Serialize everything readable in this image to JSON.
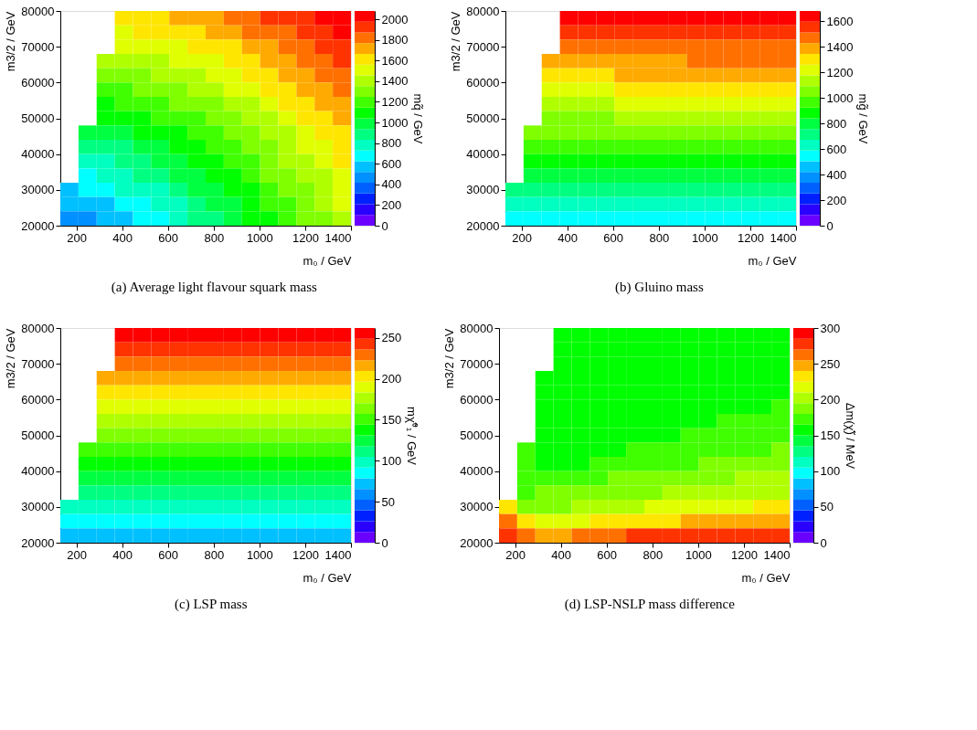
{
  "chart_data": [
    {
      "type": "heatmap",
      "title": "(a) Average light flavour squark mass",
      "xlabel": "m₀ / GeV",
      "ylabel": "m3/2 / GeV",
      "clabel": "mq̃ / GeV",
      "xlim": [
        130,
        1400
      ],
      "ylim": [
        20000,
        80000
      ],
      "xticks": [
        200,
        400,
        600,
        800,
        1000,
        1200,
        1400
      ],
      "yticks": [
        20000,
        30000,
        40000,
        50000,
        60000,
        70000,
        80000
      ],
      "clim": [
        0,
        2080
      ],
      "cticks": [
        0,
        200,
        400,
        600,
        800,
        1000,
        1200,
        1400,
        1600,
        1800,
        2000
      ],
      "colors": [
        "#6a00ff",
        "#2a00ff",
        "#0020ff",
        "#0060ff",
        "#0090ff",
        "#00c0ff",
        "#00ffff",
        "#00ffc0",
        "#00ff80",
        "#00ff40",
        "#00ff00",
        "#40ff00",
        "#80ff00",
        "#b0ff00",
        "#e0ff00",
        "#ffe600",
        "#ffaa00",
        "#ff7000",
        "#ff3300",
        "#ff0000"
      ],
      "cells": [
        [
          null,
          null,
          null,
          1610,
          1630,
          1660,
          1690,
          1720,
          1760,
          1790,
          1830,
          1880,
          1920,
          1970,
          2020,
          2070
        ],
        [
          null,
          null,
          null,
          1540,
          1560,
          1590,
          1620,
          1650,
          1690,
          1720,
          1770,
          1810,
          1860,
          1910,
          1960,
          2010
        ],
        [
          null,
          null,
          null,
          1460,
          1480,
          1510,
          1540,
          1580,
          1620,
          1660,
          1700,
          1750,
          1790,
          1850,
          1900,
          1950
        ],
        [
          null,
          null,
          1360,
          1380,
          1410,
          1440,
          1470,
          1510,
          1550,
          1590,
          1630,
          1680,
          1730,
          1790,
          1840,
          1900
        ],
        [
          null,
          null,
          1280,
          1310,
          1330,
          1360,
          1400,
          1440,
          1480,
          1520,
          1570,
          1620,
          1670,
          1730,
          1780,
          1840
        ],
        [
          null,
          null,
          1210,
          1230,
          1260,
          1290,
          1330,
          1370,
          1410,
          1460,
          1510,
          1560,
          1610,
          1670,
          1730,
          1790
        ],
        [
          null,
          null,
          1130,
          1160,
          1190,
          1220,
          1260,
          1300,
          1350,
          1400,
          1450,
          1500,
          1560,
          1620,
          1680,
          1740
        ],
        [
          null,
          null,
          1050,
          1080,
          1110,
          1150,
          1190,
          1240,
          1280,
          1340,
          1390,
          1450,
          1500,
          1560,
          1630,
          1690
        ],
        [
          null,
          950,
          980,
          1010,
          1040,
          1080,
          1120,
          1170,
          1220,
          1280,
          1330,
          1390,
          1450,
          1510,
          1580,
          1640
        ],
        [
          null,
          880,
          900,
          930,
          970,
          1010,
          1060,
          1110,
          1160,
          1220,
          1280,
          1340,
          1400,
          1470,
          1530,
          1600
        ],
        [
          null,
          800,
          830,
          860,
          900,
          950,
          1000,
          1050,
          1110,
          1170,
          1230,
          1290,
          1360,
          1420,
          1490,
          1560
        ],
        [
          null,
          720,
          760,
          790,
          840,
          890,
          940,
          990,
          1050,
          1120,
          1180,
          1250,
          1310,
          1380,
          1450,
          1520
        ],
        [
          620,
          650,
          680,
          730,
          770,
          830,
          880,
          940,
          1000,
          1070,
          1140,
          1200,
          1270,
          1340,
          1420,
          1490
        ],
        [
          550,
          580,
          620,
          660,
          710,
          770,
          830,
          890,
          960,
          1030,
          1090,
          1170,
          1240,
          1310,
          1380,
          1460
        ],
        [
          470,
          510,
          550,
          600,
          660,
          720,
          780,
          850,
          920,
          990,
          1060,
          1130,
          1210,
          1280,
          1350,
          1430
        ]
      ]
    },
    {
      "type": "heatmap",
      "title": "(b) Gluino mass",
      "xlabel": "m₀ / GeV",
      "ylabel": "m3/2 / GeV",
      "clabel": "mg̃ / GeV",
      "xlim": [
        130,
        1400
      ],
      "ylim": [
        20000,
        80000
      ],
      "xticks": [
        200,
        400,
        600,
        800,
        1000,
        1200,
        1400
      ],
      "yticks": [
        20000,
        30000,
        40000,
        50000,
        60000,
        70000,
        80000
      ],
      "clim": [
        0,
        1680
      ],
      "cticks": [
        0,
        200,
        400,
        600,
        800,
        1000,
        1200,
        1400,
        1600
      ],
      "colors": [
        "#6a00ff",
        "#2a00ff",
        "#0020ff",
        "#0060ff",
        "#0090ff",
        "#00c0ff",
        "#00ffff",
        "#00ffc0",
        "#00ff80",
        "#00ff40",
        "#00ff00",
        "#40ff00",
        "#80ff00",
        "#b0ff00",
        "#e0ff00",
        "#ffe600",
        "#ffaa00",
        "#ff7000",
        "#ff3300",
        "#ff0000"
      ],
      "cells": [
        [
          null,
          null,
          null,
          1640,
          1640,
          1640,
          1655,
          1655,
          1655,
          1655,
          1670,
          1670,
          1670,
          1670,
          1670,
          1670
        ],
        [
          null,
          null,
          null,
          1560,
          1560,
          1560,
          1575,
          1575,
          1575,
          1575,
          1590,
          1590,
          1590,
          1590,
          1590,
          1590
        ],
        [
          null,
          null,
          null,
          1480,
          1480,
          1480,
          1495,
          1495,
          1495,
          1495,
          1510,
          1510,
          1510,
          1510,
          1510,
          1510
        ],
        [
          null,
          null,
          1405,
          1405,
          1405,
          1405,
          1420,
          1420,
          1420,
          1420,
          1435,
          1435,
          1435,
          1435,
          1435,
          1435
        ],
        [
          null,
          null,
          1330,
          1330,
          1330,
          1330,
          1345,
          1345,
          1345,
          1345,
          1360,
          1360,
          1360,
          1360,
          1360,
          1360
        ],
        [
          null,
          null,
          1250,
          1250,
          1250,
          1250,
          1265,
          1265,
          1265,
          1265,
          1280,
          1280,
          1280,
          1280,
          1280,
          1280
        ],
        [
          null,
          null,
          1170,
          1170,
          1170,
          1170,
          1185,
          1185,
          1185,
          1185,
          1200,
          1200,
          1200,
          1200,
          1200,
          1200
        ],
        [
          null,
          null,
          1090,
          1090,
          1090,
          1090,
          1105,
          1105,
          1105,
          1105,
          1120,
          1120,
          1120,
          1120,
          1120,
          1120
        ],
        [
          null,
          1015,
          1015,
          1015,
          1015,
          1015,
          1030,
          1030,
          1030,
          1030,
          1045,
          1045,
          1045,
          1045,
          1045,
          1045
        ],
        [
          null,
          935,
          935,
          935,
          935,
          935,
          950,
          950,
          950,
          950,
          965,
          965,
          965,
          965,
          965,
          965
        ],
        [
          null,
          860,
          860,
          860,
          860,
          860,
          875,
          875,
          875,
          875,
          890,
          890,
          890,
          890,
          890,
          890
        ],
        [
          null,
          780,
          780,
          780,
          780,
          780,
          795,
          795,
          795,
          795,
          810,
          810,
          810,
          810,
          810,
          810
        ],
        [
          700,
          700,
          700,
          700,
          700,
          700,
          715,
          715,
          715,
          715,
          730,
          730,
          730,
          730,
          730,
          730
        ],
        [
          625,
          625,
          625,
          625,
          625,
          625,
          640,
          640,
          640,
          640,
          655,
          655,
          655,
          655,
          655,
          655
        ],
        [
          545,
          545,
          545,
          545,
          545,
          545,
          560,
          560,
          560,
          560,
          575,
          575,
          575,
          575,
          575,
          575
        ]
      ]
    },
    {
      "type": "heatmap",
      "title": "(c) LSP mass",
      "xlabel": "m₀ / GeV",
      "ylabel": "m3/2 / GeV",
      "clabel": "mχ̃⁰₁ / GeV",
      "xlim": [
        130,
        1400
      ],
      "ylim": [
        20000,
        80000
      ],
      "xticks": [
        200,
        400,
        600,
        800,
        1000,
        1200,
        1400
      ],
      "yticks": [
        20000,
        30000,
        40000,
        50000,
        60000,
        70000,
        80000
      ],
      "clim": [
        0,
        262
      ],
      "cticks": [
        0,
        50,
        100,
        150,
        200,
        250
      ],
      "colors": [
        "#6a00ff",
        "#2a00ff",
        "#0020ff",
        "#0060ff",
        "#0090ff",
        "#00c0ff",
        "#00ffff",
        "#00ffc0",
        "#00ff80",
        "#00ff40",
        "#00ff00",
        "#40ff00",
        "#80ff00",
        "#b0ff00",
        "#e0ff00",
        "#ffe600",
        "#ffaa00",
        "#ff7000",
        "#ff3300",
        "#ff0000"
      ],
      "cells": [
        [
          null,
          null,
          null,
          255,
          255,
          255,
          255,
          255,
          255,
          255,
          255,
          255,
          255,
          255,
          255,
          255
        ],
        [
          null,
          null,
          null,
          242,
          242,
          242,
          242,
          242,
          242,
          242,
          242,
          242,
          242,
          242,
          242,
          242
        ],
        [
          null,
          null,
          null,
          229,
          229,
          229,
          229,
          229,
          229,
          229,
          229,
          229,
          229,
          229,
          229,
          229
        ],
        [
          null,
          null,
          216,
          216,
          216,
          216,
          216,
          216,
          216,
          216,
          216,
          216,
          216,
          216,
          216,
          216
        ],
        [
          null,
          null,
          202,
          202,
          202,
          202,
          202,
          202,
          202,
          202,
          202,
          202,
          202,
          202,
          202,
          202
        ],
        [
          null,
          null,
          189,
          189,
          189,
          189,
          189,
          189,
          189,
          189,
          189,
          189,
          189,
          189,
          189,
          189
        ],
        [
          null,
          null,
          176,
          176,
          176,
          176,
          176,
          176,
          176,
          176,
          176,
          176,
          176,
          176,
          176,
          176
        ],
        [
          null,
          null,
          163,
          163,
          163,
          163,
          163,
          163,
          163,
          163,
          163,
          163,
          163,
          163,
          163,
          163
        ],
        [
          null,
          150,
          150,
          150,
          150,
          150,
          150,
          150,
          150,
          150,
          150,
          150,
          150,
          150,
          150,
          150
        ],
        [
          null,
          136,
          136,
          136,
          136,
          136,
          136,
          136,
          136,
          136,
          136,
          136,
          136,
          136,
          136,
          136
        ],
        [
          null,
          123,
          123,
          123,
          123,
          123,
          123,
          123,
          123,
          123,
          123,
          123,
          123,
          123,
          123,
          123
        ],
        [
          null,
          110,
          110,
          110,
          110,
          110,
          110,
          110,
          110,
          110,
          110,
          110,
          110,
          110,
          110,
          110
        ],
        [
          97,
          97,
          97,
          97,
          97,
          97,
          97,
          97,
          97,
          97,
          97,
          97,
          97,
          97,
          97,
          97
        ],
        [
          83,
          83,
          83,
          83,
          83,
          83,
          83,
          83,
          83,
          83,
          83,
          83,
          83,
          83,
          83,
          83
        ],
        [
          70,
          70,
          70,
          70,
          70,
          70,
          70,
          70,
          70,
          70,
          70,
          70,
          70,
          70,
          70,
          70
        ]
      ]
    },
    {
      "type": "heatmap",
      "title": "(d) LSP-NSLP mass difference",
      "xlabel": "m₀ / GeV",
      "ylabel": "m3/2 / GeV",
      "clabel": "Δm(χ̃) / MeV",
      "xlim": [
        130,
        1400
      ],
      "ylim": [
        20000,
        80000
      ],
      "xticks": [
        200,
        400,
        600,
        800,
        1000,
        1200,
        1400
      ],
      "yticks": [
        20000,
        30000,
        40000,
        50000,
        60000,
        70000,
        80000
      ],
      "clim": [
        0,
        300
      ],
      "cticks": [
        0,
        50,
        100,
        150,
        200,
        250,
        300
      ],
      "colors": [
        "#6a00ff",
        "#2a00ff",
        "#0020ff",
        "#0060ff",
        "#0090ff",
        "#00c0ff",
        "#00ffff",
        "#00ffc0",
        "#00ff80",
        "#00ff40",
        "#00ff00",
        "#40ff00",
        "#80ff00",
        "#b0ff00",
        "#e0ff00",
        "#ffe600",
        "#ffaa00",
        "#ff7000",
        "#ff3300",
        "#ff0000"
      ],
      "cells": [
        [
          null,
          null,
          null,
          157,
          157,
          157,
          157,
          157,
          157,
          157,
          157,
          157,
          157,
          157,
          157,
          157
        ],
        [
          null,
          null,
          null,
          157,
          157,
          157,
          157,
          157,
          157,
          157,
          157,
          157,
          157,
          157,
          157,
          157
        ],
        [
          null,
          null,
          null,
          157,
          157,
          157,
          157,
          157,
          157,
          157,
          157,
          157,
          157,
          157,
          157,
          157
        ],
        [
          null,
          null,
          157,
          157,
          157,
          157,
          157,
          157,
          157,
          157,
          157,
          157,
          157,
          157,
          157,
          157
        ],
        [
          null,
          null,
          157,
          157,
          157,
          157,
          157,
          157,
          157,
          157,
          157,
          157,
          157,
          157,
          157,
          157
        ],
        [
          null,
          null,
          157,
          157,
          157,
          157,
          157,
          157,
          157,
          157,
          157,
          157,
          157,
          157,
          157,
          172
        ],
        [
          null,
          null,
          157,
          157,
          157,
          157,
          157,
          157,
          157,
          157,
          157,
          157,
          172,
          172,
          172,
          172
        ],
        [
          null,
          null,
          157,
          157,
          157,
          157,
          157,
          157,
          157,
          157,
          172,
          172,
          172,
          172,
          172,
          172
        ],
        [
          null,
          172,
          157,
          157,
          157,
          157,
          157,
          172,
          172,
          172,
          172,
          172,
          172,
          172,
          172,
          187
        ],
        [
          null,
          172,
          157,
          157,
          157,
          172,
          172,
          172,
          172,
          172,
          172,
          187,
          187,
          187,
          187,
          187
        ],
        [
          null,
          172,
          172,
          172,
          172,
          172,
          187,
          187,
          187,
          187,
          187,
          187,
          187,
          202,
          202,
          202
        ],
        [
          null,
          172,
          187,
          187,
          187,
          187,
          187,
          187,
          187,
          202,
          202,
          202,
          202,
          202,
          202,
          202
        ],
        [
          232,
          187,
          187,
          187,
          202,
          202,
          202,
          202,
          217,
          217,
          217,
          217,
          217,
          217,
          232,
          232
        ],
        [
          262,
          232,
          217,
          217,
          217,
          232,
          232,
          232,
          232,
          232,
          247,
          247,
          247,
          247,
          247,
          247
        ],
        [
          277,
          262,
          247,
          247,
          262,
          262,
          262,
          277,
          277,
          277,
          277,
          277,
          277,
          277,
          277,
          277
        ]
      ]
    }
  ]
}
